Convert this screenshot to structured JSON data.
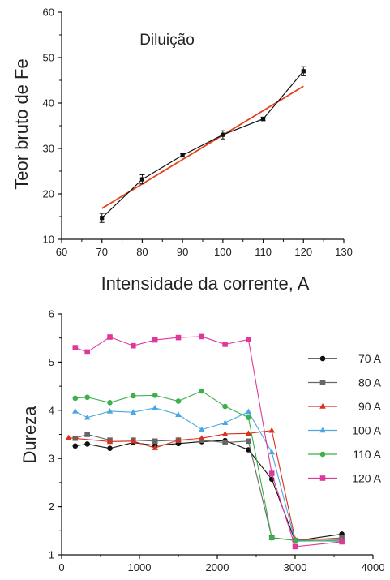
{
  "chart_data": [
    {
      "type": "line",
      "title": "",
      "annotation": "Diluição",
      "xlabel": "Intensidade da corrente, A",
      "ylabel": "Teor bruto de Fe",
      "xlim": [
        60,
        130
      ],
      "ylim": [
        10,
        60
      ],
      "xticks": [
        60,
        70,
        80,
        90,
        100,
        110,
        120,
        130
      ],
      "yticks": [
        10,
        20,
        30,
        40,
        50,
        60
      ],
      "grid": false,
      "series": [
        {
          "kind": "measured",
          "color": "#111111",
          "marker": "square",
          "x": [
            70,
            80,
            90,
            100,
            110,
            120
          ],
          "y": [
            14.7,
            23.2,
            28.5,
            33.0,
            36.5,
            47.0
          ],
          "err": [
            1.0,
            1.0,
            0.4,
            0.9,
            0.4,
            1.0
          ]
        },
        {
          "kind": "linear-fit",
          "color": "#e8401c",
          "x": [
            70,
            120
          ],
          "y": [
            16.8,
            43.7
          ]
        }
      ]
    },
    {
      "type": "line",
      "title": "",
      "xlabel": "",
      "ylabel": "Dureza",
      "xlim": [
        0,
        4000
      ],
      "ylim": [
        1,
        6
      ],
      "xticks": [
        0,
        1000,
        2000,
        3000,
        4000
      ],
      "yticks": [
        1,
        2,
        3,
        4,
        5,
        6
      ],
      "grid": false,
      "legend_position": "right",
      "series": [
        {
          "name": "70 A",
          "color": "#111111",
          "marker": "circle",
          "x": [
            175,
            330,
            620,
            920,
            1200,
            1500,
            1800,
            2100,
            2400,
            2700,
            3000,
            3600
          ],
          "y": [
            3.26,
            3.3,
            3.21,
            3.33,
            3.27,
            3.31,
            3.35,
            3.37,
            3.18,
            2.57,
            1.29,
            1.43
          ]
        },
        {
          "name": "80 A",
          "color": "#666666",
          "marker": "square",
          "x": [
            175,
            330,
            620,
            920,
            1200,
            1500,
            1800,
            2100,
            2400,
            2700,
            3000,
            3600
          ],
          "y": [
            3.42,
            3.5,
            3.38,
            3.38,
            3.36,
            3.38,
            3.38,
            3.33,
            3.36,
            1.36,
            1.3,
            1.35
          ]
        },
        {
          "name": "90 A",
          "color": "#d9321c",
          "marker": "triangle",
          "x": [
            90,
            620,
            920,
            1200,
            1500,
            1800,
            2100,
            2400,
            2700,
            3000,
            3600
          ],
          "y": [
            3.43,
            3.35,
            3.36,
            3.22,
            3.38,
            3.42,
            3.51,
            3.52,
            3.58,
            1.32,
            1.32
          ]
        },
        {
          "name": "100 A",
          "color": "#4aa8e0",
          "marker": "triangle",
          "x": [
            175,
            330,
            620,
            920,
            1200,
            1500,
            1800,
            2100,
            2400,
            2700,
            3000,
            3600
          ],
          "y": [
            3.98,
            3.85,
            3.98,
            3.96,
            4.05,
            3.91,
            3.6,
            3.74,
            3.97,
            3.13,
            1.28,
            1.3
          ]
        },
        {
          "name": "110 A",
          "color": "#3cb04a",
          "marker": "circle",
          "x": [
            175,
            330,
            620,
            920,
            1200,
            1500,
            1800,
            2100,
            2400,
            2700,
            3000,
            3600
          ],
          "y": [
            4.25,
            4.27,
            4.16,
            4.3,
            4.31,
            4.19,
            4.4,
            4.08,
            3.85,
            1.35,
            1.3,
            1.28
          ]
        },
        {
          "name": "120 A",
          "color": "#e0389a",
          "marker": "square",
          "x": [
            175,
            330,
            620,
            920,
            1200,
            1500,
            1800,
            2100,
            2400,
            2700,
            3000,
            3600
          ],
          "y": [
            5.3,
            5.21,
            5.52,
            5.34,
            5.46,
            5.51,
            5.53,
            5.37,
            5.47,
            2.69,
            1.17,
            1.27
          ]
        }
      ]
    }
  ]
}
